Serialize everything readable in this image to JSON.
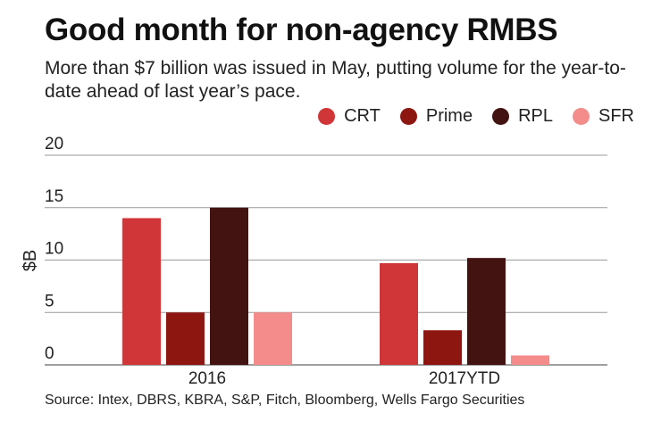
{
  "chart_data": {
    "type": "bar",
    "title": "Good month for non-agency RMBS",
    "subtitle": "More than $7 billion was issued in May, putting volume for the year-to-date ahead of last year’s pace.",
    "xlabel": "",
    "ylabel": "$B",
    "ylim": [
      0,
      20
    ],
    "yticks": [
      0,
      5,
      10,
      15,
      20
    ],
    "grid": true,
    "legend_position": "top-right",
    "categories": [
      "2016",
      "2017YTD"
    ],
    "series": [
      {
        "name": "CRT",
        "color": "#d03538",
        "values": [
          14.0,
          9.7
        ]
      },
      {
        "name": "Prime",
        "color": "#8e1611",
        "values": [
          5.0,
          3.3
        ]
      },
      {
        "name": "RPL",
        "color": "#431312",
        "values": [
          15.0,
          10.2
        ]
      },
      {
        "name": "SFR",
        "color": "#f38c8b",
        "values": [
          5.0,
          0.9
        ]
      }
    ],
    "source": "Source: Intex, DBRS, KBRA, S&P, Fitch, Bloomberg, Wells Fargo Securities"
  }
}
